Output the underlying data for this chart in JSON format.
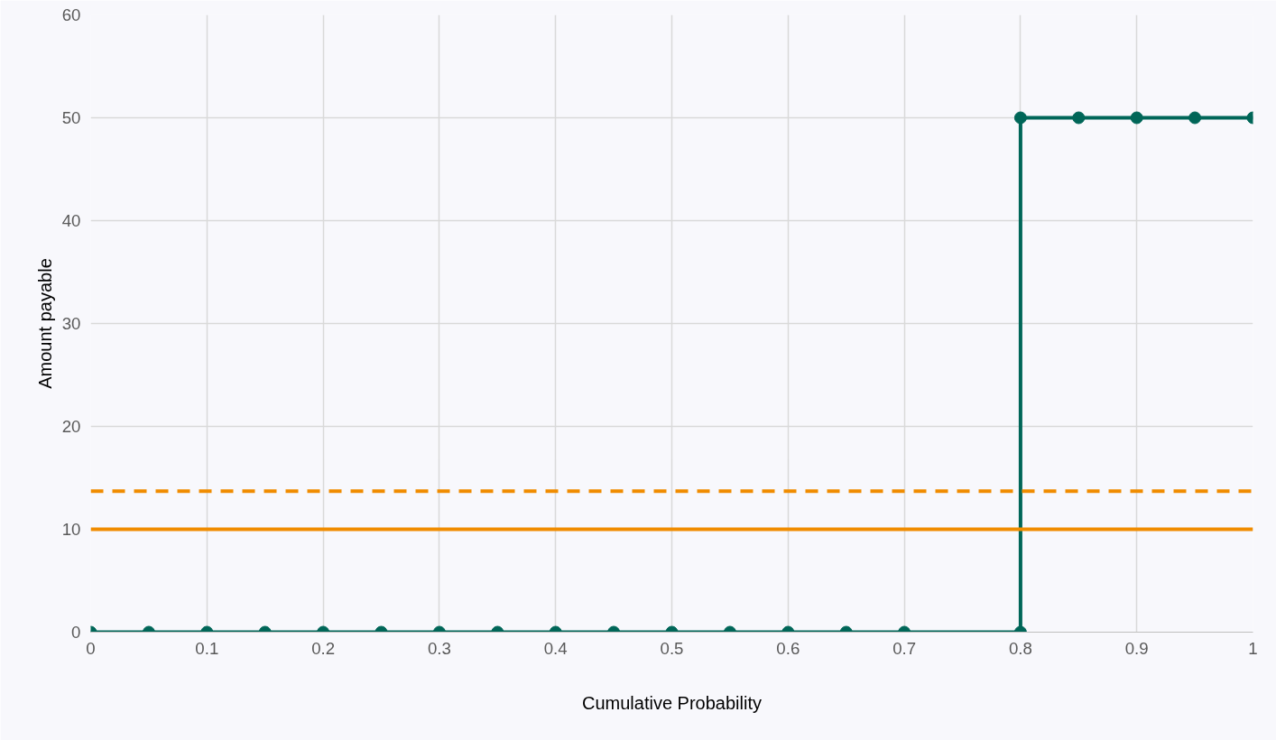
{
  "chart_data": {
    "type": "line",
    "xlabel": "Cumulative Probability",
    "ylabel": "Amount payable",
    "x": [
      0,
      0.05,
      0.1,
      0.15,
      0.2,
      0.25,
      0.3,
      0.35,
      0.4,
      0.45,
      0.5,
      0.55,
      0.6,
      0.65,
      0.7,
      0.8,
      0.8,
      0.85,
      0.9,
      0.95,
      1
    ],
    "series": [
      {
        "color": "#006658",
        "values": [
          0,
          0,
          0,
          0,
          0,
          0,
          0,
          0,
          0,
          0,
          0,
          0,
          0,
          0,
          0,
          0,
          50,
          50,
          50,
          50,
          50
        ]
      }
    ],
    "xlim": [
      0,
      1
    ],
    "xticks": [
      0,
      0.1,
      0.2,
      0.3,
      0.4,
      0.5,
      0.6,
      0.7,
      0.8,
      0.9,
      1
    ],
    "ylim": [
      0,
      60
    ],
    "yticks": [
      0,
      10,
      20,
      30,
      40,
      50,
      60
    ],
    "grid": true,
    "marker": "circle",
    "line_style": "solid",
    "ref_lines": [
      {
        "axis": "y",
        "value": 13.7,
        "label": null,
        "color": "#f08c00",
        "line_style": "dashed"
      },
      {
        "axis": "y",
        "value": 10,
        "label": null,
        "color": "#f08c00",
        "line_style": "solid"
      }
    ]
  }
}
